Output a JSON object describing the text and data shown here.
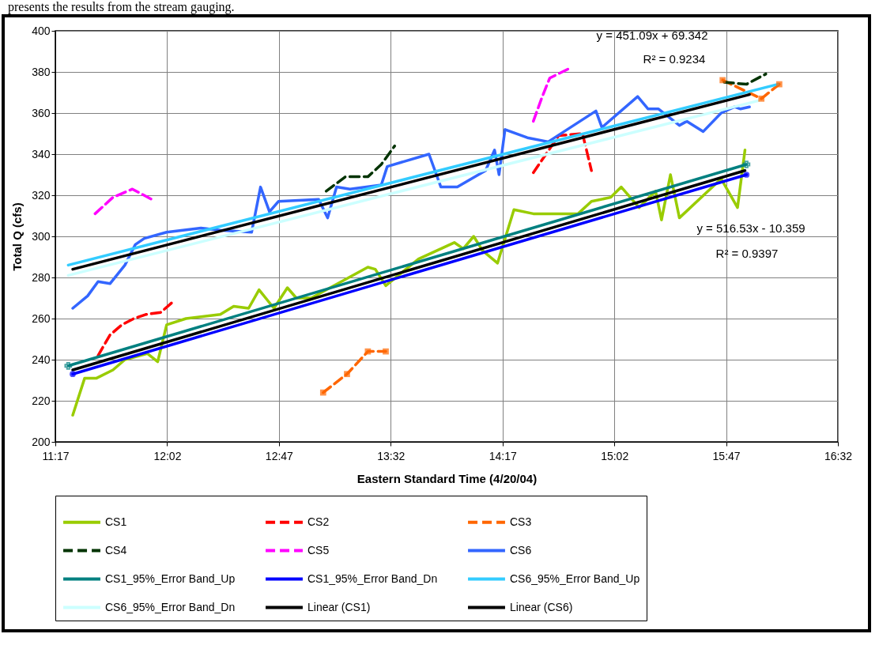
{
  "chart_data": {
    "type": "line",
    "xlabel": "Eastern Standard Time (4/20/04)",
    "ylabel": "Total Q (cfs)",
    "xlim": [
      11.2833,
      16.5333
    ],
    "xticks": [
      {
        "value": 11.2833,
        "label": "11:17"
      },
      {
        "value": 12.0333,
        "label": "12:02"
      },
      {
        "value": 12.7833,
        "label": "12:47"
      },
      {
        "value": 13.5333,
        "label": "13:32"
      },
      {
        "value": 14.2833,
        "label": "14:17"
      },
      {
        "value": 15.0333,
        "label": "15:02"
      },
      {
        "value": 15.7833,
        "label": "15:47"
      },
      {
        "value": 16.5333,
        "label": "16:32"
      }
    ],
    "ylim": [
      200,
      400
    ],
    "yticks": [
      200,
      220,
      240,
      260,
      280,
      300,
      320,
      340,
      360,
      380,
      400
    ],
    "grid": true,
    "legend": "bottom",
    "annotations": [
      "presents the results from the stream gauging.",
      "y = 451.09x + 69.342",
      "R² = 0.9234",
      "y = 516.53x - 10.359",
      "R² = 0.9397"
    ],
    "series": [
      {
        "name": "CS1",
        "color": "#99cc00",
        "line_style": "solid",
        "marker": "none",
        "x": [
          11.4,
          11.48,
          11.56,
          11.67,
          11.75,
          11.9,
          11.97,
          12.03,
          12.16,
          12.39,
          12.48,
          12.58,
          12.65,
          12.75,
          12.84,
          12.9,
          13.0,
          13.38,
          13.43,
          13.5,
          13.72,
          13.96,
          14.02,
          14.09,
          14.15,
          14.25,
          14.36,
          14.49,
          14.79,
          14.88,
          15.01,
          15.08,
          15.2,
          15.31,
          15.35,
          15.41,
          15.47,
          15.75,
          15.86,
          15.91
        ],
        "values": [
          213,
          231,
          231,
          235,
          240,
          243,
          239,
          257,
          260,
          262,
          266,
          265,
          274,
          265,
          275,
          270,
          270,
          285,
          284,
          276,
          289,
          297,
          294,
          300,
          293,
          287,
          313,
          311,
          311,
          317,
          319,
          324,
          314,
          322,
          308,
          330,
          309,
          328,
          314,
          342
        ]
      },
      {
        "name": "CS2",
        "color": "#ff0000",
        "line_style": "dashed",
        "marker": "none",
        "x": [
          11.57,
          11.65,
          11.73,
          11.81,
          11.89,
          11.99,
          12.07,
          13.3,
          14.49,
          14.66,
          14.82,
          14.88
        ],
        "values": [
          242,
          252,
          257,
          260,
          262,
          263,
          268,
          null,
          331,
          349,
          350,
          332
        ]
      },
      {
        "name": "CS3",
        "color": "#ff6600",
        "line_style": "dashed",
        "marker": "square",
        "x": [
          13.08,
          13.24,
          13.38,
          13.5,
          14.6,
          15.76,
          16.02,
          16.14
        ],
        "values": [
          224,
          233,
          244,
          244,
          null,
          376,
          367,
          374
        ]
      },
      {
        "name": "CS4",
        "color": "#003300",
        "line_style": "dashed",
        "marker": "none",
        "x": [
          13.1,
          13.23,
          13.38,
          13.47,
          13.56,
          14.6,
          15.77,
          15.92,
          16.05
        ],
        "values": [
          322,
          329,
          329,
          335,
          344,
          null,
          375,
          374,
          379
        ]
      },
      {
        "name": "CS5",
        "color": "#ff00ff",
        "line_style": "dashed",
        "marker": "none",
        "x": [
          11.55,
          11.67,
          11.8,
          11.93,
          13.2,
          14.49,
          14.55,
          14.6,
          14.74
        ],
        "values": [
          311,
          319,
          323,
          318,
          null,
          356,
          368,
          377,
          382
        ]
      },
      {
        "name": "CS6",
        "color": "#3366ff",
        "line_style": "solid",
        "marker": "none",
        "x": [
          11.4,
          11.5,
          11.57,
          11.65,
          11.75,
          11.82,
          11.88,
          12.03,
          12.26,
          12.39,
          12.6,
          12.66,
          12.72,
          12.78,
          13.05,
          13.11,
          13.17,
          13.26,
          13.47,
          13.51,
          13.79,
          13.87,
          13.98,
          14.17,
          14.23,
          14.26,
          14.3,
          14.45,
          14.59,
          14.91,
          14.95,
          15.19,
          15.26,
          15.33,
          15.47,
          15.52,
          15.63,
          15.75,
          15.84,
          15.88,
          15.94
        ],
        "values": [
          265,
          271,
          278,
          277,
          286,
          296,
          299,
          302,
          304,
          303,
          302,
          324,
          312,
          317,
          318,
          309,
          324,
          323,
          325,
          334,
          340,
          324,
          324,
          332,
          342,
          330,
          352,
          348,
          346,
          361,
          353,
          368,
          362,
          362,
          354,
          356,
          351,
          360,
          363,
          362,
          363
        ]
      },
      {
        "name": "CS1_95%_Error Band_Up",
        "color": "#008080",
        "line_style": "solid",
        "marker": "cross",
        "x": [
          11.37,
          15.92
        ],
        "values": [
          237,
          335
        ]
      },
      {
        "name": "CS1_95%_Error Band_Dn",
        "color": "#0000ff",
        "line_style": "solid",
        "marker": "circle",
        "x": [
          11.4,
          15.92
        ],
        "values": [
          233,
          330
        ]
      },
      {
        "name": "CS6_95%_Error Band_Up",
        "color": "#33ccff",
        "line_style": "solid",
        "marker": "none",
        "x": [
          11.37,
          16.13
        ],
        "values": [
          286,
          374
        ]
      },
      {
        "name": "CS6_95%_Error Band_Dn",
        "color": "#ccffff",
        "line_style": "solid",
        "marker": "none",
        "x": [
          11.37,
          16.0
        ],
        "values": [
          281,
          366
        ]
      },
      {
        "name": "Linear (CS1)",
        "color": "#000000",
        "line_style": "solid",
        "marker": "none",
        "x": [
          11.4,
          15.91
        ],
        "values": [
          235,
          332
        ]
      },
      {
        "name": "Linear (CS6)",
        "color": "#000000",
        "line_style": "solid",
        "marker": "none",
        "x": [
          11.4,
          15.94
        ],
        "values": [
          284,
          369
        ]
      }
    ]
  }
}
